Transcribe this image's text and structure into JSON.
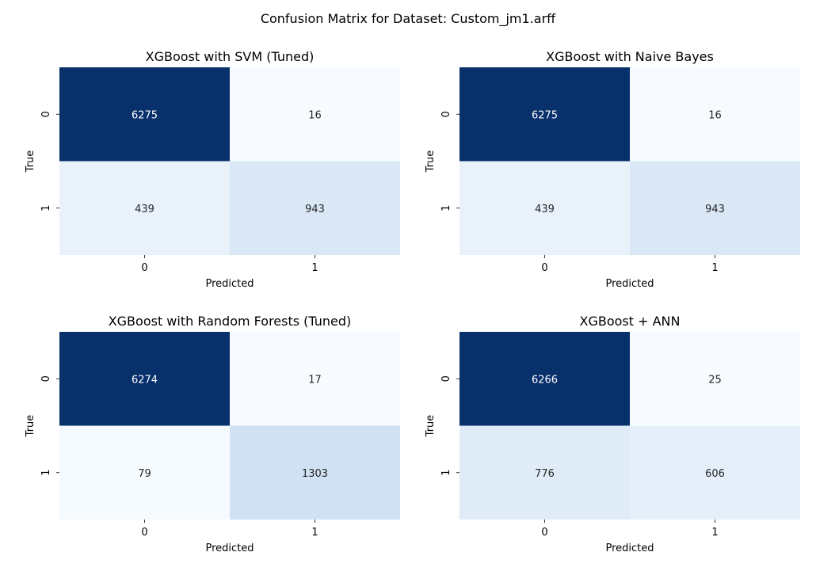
{
  "suptitle": "Confusion Matrix for Dataset: Custom_jm1.arff",
  "chart_data": [
    {
      "type": "heatmap",
      "title": "XGBoost with SVM (Tuned)",
      "xlabel": "Predicted",
      "ylabel": "True",
      "x_ticks": [
        "0",
        "1"
      ],
      "y_ticks": [
        "0",
        "1"
      ],
      "matrix": [
        [
          6275,
          16
        ],
        [
          439,
          943
        ]
      ],
      "colormap": "Blues",
      "colorbar": false
    },
    {
      "type": "heatmap",
      "title": "XGBoost with Naive Bayes",
      "xlabel": "Predicted",
      "ylabel": "True",
      "x_ticks": [
        "0",
        "1"
      ],
      "y_ticks": [
        "0",
        "1"
      ],
      "matrix": [
        [
          6275,
          16
        ],
        [
          439,
          943
        ]
      ],
      "colormap": "Blues",
      "colorbar": false
    },
    {
      "type": "heatmap",
      "title": "XGBoost with Random Forests (Tuned)",
      "xlabel": "Predicted",
      "ylabel": "True",
      "x_ticks": [
        "0",
        "1"
      ],
      "y_ticks": [
        "0",
        "1"
      ],
      "matrix": [
        [
          6274,
          17
        ],
        [
          79,
          1303
        ]
      ],
      "colormap": "Blues",
      "colorbar": false
    },
    {
      "type": "heatmap",
      "title": "XGBoost + ANN",
      "xlabel": "Predicted",
      "ylabel": "True",
      "x_ticks": [
        "0",
        "1"
      ],
      "y_ticks": [
        "0",
        "1"
      ],
      "matrix": [
        [
          6266,
          25
        ],
        [
          776,
          606
        ]
      ],
      "colormap": "Blues",
      "colorbar": false
    }
  ]
}
